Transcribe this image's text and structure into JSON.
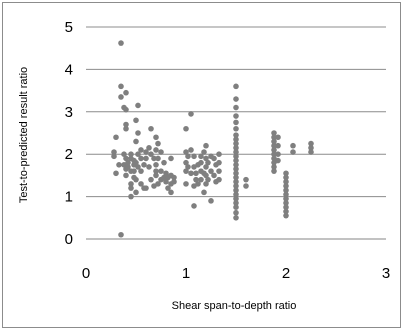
{
  "chart_data": {
    "type": "scatter",
    "title": "",
    "xlabel": "Shear span-to-depth ratio",
    "ylabel": "Test-to-predicted  result  ratio",
    "xlim": [
      0,
      3
    ],
    "ylim": [
      0,
      5
    ],
    "xticks": [
      "0",
      "1",
      "2",
      "3"
    ],
    "yticks": [
      "0",
      "1",
      "2",
      "3",
      "4",
      "5"
    ],
    "grid": "horizontal",
    "legend": "none",
    "marker_color": "#7f7f7f",
    "series": [
      {
        "points": [
          [
            0.28,
            2.05
          ],
          [
            0.28,
            1.95
          ],
          [
            0.3,
            1.55
          ],
          [
            0.3,
            2.4
          ],
          [
            0.33,
            1.75
          ],
          [
            0.35,
            4.62
          ],
          [
            0.35,
            3.6
          ],
          [
            0.35,
            3.35
          ],
          [
            0.35,
            0.1
          ],
          [
            0.38,
            2.0
          ],
          [
            0.38,
            1.75
          ],
          [
            0.38,
            3.1
          ],
          [
            0.4,
            3.45
          ],
          [
            0.4,
            3.05
          ],
          [
            0.4,
            2.7
          ],
          [
            0.4,
            2.6
          ],
          [
            0.4,
            1.9
          ],
          [
            0.4,
            1.65
          ],
          [
            0.4,
            1.5
          ],
          [
            0.42,
            1.8
          ],
          [
            0.42,
            1.7
          ],
          [
            0.45,
            2.0
          ],
          [
            0.45,
            1.9
          ],
          [
            0.45,
            1.6
          ],
          [
            0.45,
            1.3
          ],
          [
            0.45,
            1.2
          ],
          [
            0.45,
            1.0
          ],
          [
            0.48,
            1.85
          ],
          [
            0.48,
            1.75
          ],
          [
            0.48,
            1.6
          ],
          [
            0.48,
            1.45
          ],
          [
            0.5,
            2.8
          ],
          [
            0.5,
            2.3
          ],
          [
            0.5,
            1.8
          ],
          [
            0.5,
            1.4
          ],
          [
            0.5,
            1.1
          ],
          [
            0.52,
            3.15
          ],
          [
            0.52,
            2.5
          ],
          [
            0.52,
            2.0
          ],
          [
            0.52,
            1.7
          ],
          [
            0.55,
            2.1
          ],
          [
            0.55,
            1.9
          ],
          [
            0.55,
            1.6
          ],
          [
            0.55,
            1.3
          ],
          [
            0.58,
            1.75
          ],
          [
            0.58,
            1.2
          ],
          [
            0.6,
            2.05
          ],
          [
            0.6,
            1.9
          ],
          [
            0.6,
            1.2
          ],
          [
            0.63,
            2.15
          ],
          [
            0.63,
            1.7
          ],
          [
            0.65,
            2.6
          ],
          [
            0.65,
            2.0
          ],
          [
            0.65,
            1.4
          ],
          [
            0.68,
            1.9
          ],
          [
            0.68,
            1.25
          ],
          [
            0.7,
            2.4
          ],
          [
            0.7,
            2.1
          ],
          [
            0.7,
            1.75
          ],
          [
            0.7,
            1.6
          ],
          [
            0.7,
            1.5
          ],
          [
            0.72,
            2.25
          ],
          [
            0.72,
            1.9
          ],
          [
            0.72,
            1.3
          ],
          [
            0.75,
            2.05
          ],
          [
            0.75,
            1.6
          ],
          [
            0.75,
            1.4
          ],
          [
            0.78,
            1.8
          ],
          [
            0.78,
            1.45
          ],
          [
            0.8,
            1.55
          ],
          [
            0.8,
            1.35
          ],
          [
            0.82,
            1.45
          ],
          [
            0.82,
            1.2
          ],
          [
            0.85,
            1.9
          ],
          [
            0.85,
            1.5
          ],
          [
            0.85,
            1.3
          ],
          [
            0.85,
            1.1
          ],
          [
            0.88,
            1.45
          ],
          [
            0.88,
            1.35
          ],
          [
            1.0,
            2.6
          ],
          [
            1.0,
            2.05
          ],
          [
            1.0,
            1.8
          ],
          [
            1.0,
            1.6
          ],
          [
            1.0,
            1.3
          ],
          [
            1.02,
            1.95
          ],
          [
            1.02,
            1.7
          ],
          [
            1.05,
            2.95
          ],
          [
            1.05,
            2.1
          ],
          [
            1.05,
            1.55
          ],
          [
            1.08,
            1.95
          ],
          [
            1.08,
            1.7
          ],
          [
            1.08,
            1.25
          ],
          [
            1.08,
            0.78
          ],
          [
            1.1,
            1.55
          ],
          [
            1.1,
            1.4
          ],
          [
            1.12,
            1.75
          ],
          [
            1.12,
            1.3
          ],
          [
            1.15,
            1.95
          ],
          [
            1.15,
            1.8
          ],
          [
            1.15,
            1.6
          ],
          [
            1.15,
            1.4
          ],
          [
            1.18,
            2.05
          ],
          [
            1.18,
            1.55
          ],
          [
            1.18,
            1.1
          ],
          [
            1.2,
            2.2
          ],
          [
            1.2,
            1.9
          ],
          [
            1.2,
            1.7
          ],
          [
            1.2,
            1.5
          ],
          [
            1.2,
            1.3
          ],
          [
            1.22,
            1.8
          ],
          [
            1.22,
            1.4
          ],
          [
            1.25,
            1.95
          ],
          [
            1.25,
            1.6
          ],
          [
            1.25,
            0.9
          ],
          [
            1.28,
            1.9
          ],
          [
            1.28,
            1.5
          ],
          [
            1.3,
            1.75
          ],
          [
            1.3,
            1.35
          ],
          [
            1.33,
            2.0
          ],
          [
            1.33,
            1.8
          ],
          [
            1.33,
            1.6
          ],
          [
            1.33,
            1.4
          ],
          [
            1.5,
            3.6
          ],
          [
            1.5,
            3.3
          ],
          [
            1.5,
            3.1
          ],
          [
            1.5,
            2.9
          ],
          [
            1.5,
            2.75
          ],
          [
            1.5,
            2.6
          ],
          [
            1.5,
            2.45
          ],
          [
            1.5,
            2.35
          ],
          [
            1.5,
            2.25
          ],
          [
            1.5,
            2.15
          ],
          [
            1.5,
            2.05
          ],
          [
            1.5,
            1.95
          ],
          [
            1.5,
            1.85
          ],
          [
            1.5,
            1.75
          ],
          [
            1.5,
            1.65
          ],
          [
            1.5,
            1.55
          ],
          [
            1.5,
            1.45
          ],
          [
            1.5,
            1.35
          ],
          [
            1.5,
            1.25
          ],
          [
            1.5,
            1.15
          ],
          [
            1.5,
            1.05
          ],
          [
            1.5,
            0.95
          ],
          [
            1.5,
            0.85
          ],
          [
            1.5,
            0.75
          ],
          [
            1.5,
            0.62
          ],
          [
            1.5,
            0.5
          ],
          [
            1.6,
            1.4
          ],
          [
            1.6,
            1.25
          ],
          [
            1.88,
            2.5
          ],
          [
            1.88,
            2.4
          ],
          [
            1.88,
            2.3
          ],
          [
            1.88,
            2.2
          ],
          [
            1.88,
            2.1
          ],
          [
            1.88,
            2.0
          ],
          [
            1.88,
            1.9
          ],
          [
            1.88,
            1.8
          ],
          [
            1.88,
            1.7
          ],
          [
            1.88,
            1.6
          ],
          [
            1.92,
            2.4
          ],
          [
            1.92,
            2.2
          ],
          [
            1.92,
            2.0
          ],
          [
            1.92,
            1.85
          ],
          [
            2.0,
            1.55
          ],
          [
            2.0,
            1.45
          ],
          [
            2.0,
            1.35
          ],
          [
            2.0,
            1.25
          ],
          [
            2.0,
            1.15
          ],
          [
            2.0,
            1.05
          ],
          [
            2.0,
            0.95
          ],
          [
            2.0,
            0.85
          ],
          [
            2.0,
            0.75
          ],
          [
            2.0,
            0.65
          ],
          [
            2.0,
            0.55
          ],
          [
            2.07,
            2.2
          ],
          [
            2.07,
            2.05
          ],
          [
            2.25,
            2.25
          ],
          [
            2.25,
            2.15
          ],
          [
            2.25,
            2.05
          ]
        ]
      }
    ]
  }
}
